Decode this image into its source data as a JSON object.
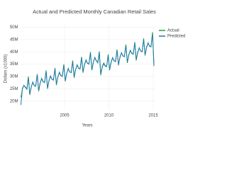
{
  "chart_data": {
    "type": "line",
    "title": "Actual and Predicted Monthly Canadian Retail Sales",
    "x_label": "Years",
    "y_label": "Dollars (x1000)",
    "x": [
      2000.08,
      2000.25,
      2000.42,
      2000.58,
      2000.75,
      2000.92,
      2001.08,
      2001.25,
      2001.42,
      2001.58,
      2001.75,
      2001.92,
      2002.08,
      2002.25,
      2002.42,
      2002.58,
      2002.75,
      2002.92,
      2003.08,
      2003.25,
      2003.42,
      2003.58,
      2003.75,
      2003.92,
      2004.08,
      2004.25,
      2004.42,
      2004.58,
      2004.75,
      2004.92,
      2005.08,
      2005.25,
      2005.42,
      2005.58,
      2005.75,
      2005.92,
      2006.08,
      2006.25,
      2006.42,
      2006.58,
      2006.75,
      2006.92,
      2007.08,
      2007.25,
      2007.42,
      2007.58,
      2007.75,
      2007.92,
      2008.08,
      2008.25,
      2008.42,
      2008.58,
      2008.75,
      2008.92,
      2009.08,
      2009.25,
      2009.42,
      2009.58,
      2009.75,
      2009.92,
      2010.08,
      2010.25,
      2010.42,
      2010.58,
      2010.75,
      2010.92,
      2011.08,
      2011.25,
      2011.42,
      2011.58,
      2011.75,
      2011.92,
      2012.08,
      2012.25,
      2012.42,
      2012.58,
      2012.75,
      2012.92,
      2013.08,
      2013.25,
      2013.42,
      2013.58,
      2013.75,
      2013.92,
      2014.08,
      2014.25,
      2014.42,
      2014.58,
      2014.75,
      2014.92,
      2015.08
    ],
    "series": [
      {
        "name": "Actual",
        "color": "#2ca02c",
        "values": [
          21500000,
          25000000,
          26500000,
          25500000,
          25000000,
          30000000,
          22500000,
          26000000,
          27500000,
          26500000,
          26000000,
          31000000,
          24000000,
          27500000,
          29000000,
          28000000,
          27500000,
          32500000,
          25000000,
          28500000,
          30000000,
          29000000,
          28500000,
          33500000,
          26500000,
          30000000,
          31500000,
          30500000,
          30000000,
          35000000,
          28000000,
          31500000,
          33000000,
          32000000,
          31500000,
          36500000,
          29500000,
          33000000,
          34500000,
          33500000,
          33000000,
          38000000,
          31500000,
          35000000,
          36500000,
          35500000,
          35000000,
          40000000,
          32500000,
          36000000,
          37500000,
          36500000,
          35500000,
          39500000,
          30500000,
          34000000,
          35500000,
          34500000,
          34000000,
          39000000,
          32500000,
          36000000,
          37500000,
          36500000,
          36000000,
          41000000,
          34500000,
          38000000,
          39500000,
          38500000,
          38000000,
          43000000,
          35500000,
          39000000,
          40500000,
          39500000,
          39000000,
          44000000,
          36500000,
          40000000,
          41500000,
          40500000,
          40000000,
          45500000,
          38500000,
          42000000,
          43500000,
          42500000,
          42000000,
          48000000,
          35000000
        ]
      },
      {
        "name": "Predicted",
        "color": "#1f77b4",
        "values": [
          18500000,
          25300000,
          26200000,
          25800000,
          24800000,
          29500000,
          22900000,
          25700000,
          27800000,
          26300000,
          26200000,
          30600000,
          24400000,
          27300000,
          29300000,
          27800000,
          27700000,
          32100000,
          25400000,
          28300000,
          30300000,
          28800000,
          28700000,
          33100000,
          26900000,
          29800000,
          31800000,
          30300000,
          30200000,
          34600000,
          28400000,
          31300000,
          33300000,
          31800000,
          31700000,
          36100000,
          29900000,
          32800000,
          34800000,
          33300000,
          33200000,
          37600000,
          31900000,
          34800000,
          36800000,
          35300000,
          35200000,
          39600000,
          32900000,
          35800000,
          37800000,
          36300000,
          35700000,
          40200000,
          31200000,
          33700000,
          35300000,
          34200000,
          34100000,
          38500000,
          32900000,
          35700000,
          37700000,
          36300000,
          36200000,
          40600000,
          34900000,
          37700000,
          39700000,
          38300000,
          38200000,
          42600000,
          35900000,
          38700000,
          40700000,
          39300000,
          39200000,
          43600000,
          36900000,
          39700000,
          41700000,
          40300000,
          40200000,
          45000000,
          38900000,
          41700000,
          43700000,
          42300000,
          42200000,
          47400000,
          34200000
        ]
      }
    ],
    "xlim": [
      2000,
      2015.2
    ],
    "xticks": [
      2005,
      2010,
      2015
    ],
    "ylim": [
      16500000,
      51000000
    ],
    "yticks": [
      {
        "value": 20000000,
        "label": "20M"
      },
      {
        "value": 25000000,
        "label": "25M"
      },
      {
        "value": 30000000,
        "label": "30M"
      },
      {
        "value": 35000000,
        "label": "35M"
      },
      {
        "value": 40000000,
        "label": "40M"
      },
      {
        "value": 45000000,
        "label": "45M"
      },
      {
        "value": 50000000,
        "label": "50M"
      }
    ],
    "grid": true,
    "legend": "top-right"
  }
}
